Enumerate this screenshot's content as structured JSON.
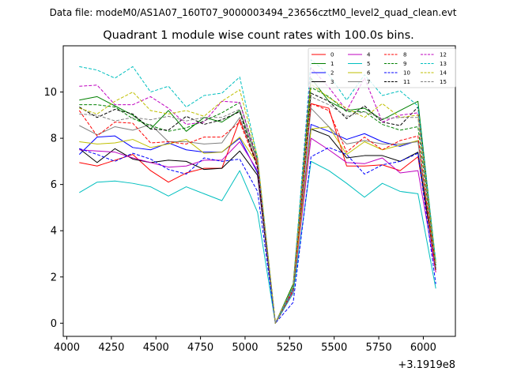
{
  "suptitle": "Data file: modeM0/AS1A07_160T07_9000003494_23656cztM0_level2_quad_clean.evt",
  "chart_data": {
    "type": "line",
    "title": "Quadrant 1 module wise count rates with 100.0s bins.",
    "xlabel": "",
    "ylabel": "",
    "x_offset_label": "+3.1919e8",
    "xlim": [
      3980,
      6180
    ],
    "ylim": [
      -0.57,
      12.0
    ],
    "xticks": [
      4000,
      4250,
      4500,
      4750,
      5000,
      5250,
      5500,
      5750,
      6000
    ],
    "yticks": [
      0,
      2,
      4,
      6,
      8,
      10
    ],
    "grid": false,
    "legend_position": "top-right",
    "legend_columns": 4,
    "x": [
      4070,
      4170,
      4270,
      4370,
      4470,
      4570,
      4670,
      4770,
      4870,
      4970,
      5070,
      5170,
      5270,
      5370,
      5470,
      5570,
      5670,
      5770,
      5870,
      5970,
      6070
    ],
    "series": [
      {
        "name": "0",
        "color": "#ff0000",
        "dash": "solid",
        "values": [
          6.95,
          6.8,
          7.05,
          7.3,
          6.6,
          6.1,
          6.5,
          6.7,
          6.7,
          8.8,
          6.9,
          0.0,
          1.3,
          9.5,
          9.3,
          6.8,
          6.8,
          6.85,
          6.6,
          7.2,
          2.4
        ]
      },
      {
        "name": "1",
        "color": "#008000",
        "dash": "solid",
        "values": [
          9.65,
          9.8,
          9.4,
          9.0,
          8.4,
          9.2,
          8.3,
          8.9,
          8.7,
          9.2,
          7.0,
          0.0,
          1.7,
          10.6,
          9.6,
          9.2,
          9.3,
          8.8,
          9.2,
          9.6,
          2.6
        ]
      },
      {
        "name": "2",
        "color": "#0000ff",
        "dash": "solid",
        "values": [
          7.3,
          8.05,
          8.1,
          7.6,
          7.5,
          7.8,
          7.5,
          7.4,
          7.4,
          8.0,
          6.5,
          0.0,
          1.5,
          8.6,
          8.3,
          7.95,
          8.2,
          7.85,
          7.65,
          7.9,
          2.3
        ]
      },
      {
        "name": "3",
        "color": "#000000",
        "dash": "solid",
        "values": [
          7.55,
          6.95,
          7.55,
          7.1,
          6.95,
          7.05,
          7.0,
          6.65,
          6.7,
          7.45,
          6.4,
          0.0,
          1.5,
          8.4,
          8.1,
          7.15,
          7.25,
          7.25,
          7.0,
          7.4,
          2.3
        ]
      },
      {
        "name": "4",
        "color": "#bf00bf",
        "dash": "solid",
        "values": [
          7.5,
          7.45,
          7.4,
          7.15,
          6.95,
          6.75,
          6.8,
          7.05,
          7.05,
          7.85,
          6.6,
          0.0,
          1.4,
          8.0,
          7.5,
          6.95,
          6.9,
          7.15,
          6.5,
          6.6,
          2.2
        ]
      },
      {
        "name": "5",
        "color": "#00bfbf",
        "dash": "solid",
        "values": [
          5.65,
          6.1,
          6.15,
          6.05,
          5.9,
          5.5,
          5.9,
          5.6,
          5.3,
          6.6,
          4.8,
          0.0,
          1.3,
          7.0,
          6.6,
          6.05,
          5.45,
          6.05,
          5.7,
          5.6,
          1.5
        ]
      },
      {
        "name": "6",
        "color": "#bfbf00",
        "dash": "solid",
        "values": [
          7.85,
          7.75,
          7.8,
          7.95,
          7.6,
          7.75,
          7.95,
          7.35,
          7.4,
          8.05,
          6.9,
          0.0,
          1.5,
          8.4,
          8.5,
          7.3,
          7.85,
          7.5,
          7.7,
          7.9,
          2.4
        ]
      },
      {
        "name": "7",
        "color": "#808080",
        "dash": "solid",
        "values": [
          8.55,
          8.15,
          8.5,
          8.35,
          8.6,
          7.85,
          7.85,
          7.75,
          7.8,
          8.9,
          6.8,
          0.0,
          1.6,
          9.3,
          8.5,
          7.75,
          7.9,
          7.75,
          7.75,
          7.85,
          2.3
        ]
      },
      {
        "name": "8",
        "color": "#ff0000",
        "dash": "dashed",
        "values": [
          9.2,
          8.1,
          8.7,
          8.65,
          7.8,
          7.85,
          7.75,
          8.05,
          8.05,
          8.7,
          6.8,
          0.0,
          1.4,
          9.5,
          9.2,
          7.4,
          8.05,
          7.5,
          7.9,
          8.1,
          2.2
        ]
      },
      {
        "name": "9",
        "color": "#008000",
        "dash": "dashed",
        "values": [
          9.45,
          9.45,
          9.35,
          8.85,
          8.55,
          8.3,
          8.45,
          8.75,
          9.1,
          9.55,
          7.1,
          0.0,
          1.6,
          10.2,
          9.8,
          9.15,
          9.15,
          8.6,
          8.35,
          8.5,
          2.5
        ]
      },
      {
        "name": "10",
        "color": "#0000ff",
        "dash": "dashed",
        "values": [
          7.55,
          7.3,
          7.0,
          7.35,
          7.1,
          6.65,
          6.45,
          7.15,
          7.0,
          7.1,
          5.7,
          0.0,
          0.9,
          7.2,
          7.6,
          7.3,
          6.45,
          6.85,
          7.0,
          7.35,
          1.7
        ]
      },
      {
        "name": "11",
        "color": "#000000",
        "dash": "dashed",
        "values": [
          9.35,
          8.9,
          9.25,
          9.05,
          8.4,
          8.35,
          8.95,
          8.6,
          8.8,
          9.15,
          6.7,
          0.0,
          1.5,
          9.95,
          9.6,
          8.85,
          9.4,
          8.7,
          8.55,
          9.35,
          2.3
        ]
      },
      {
        "name": "12",
        "color": "#bf00bf",
        "dash": "dashed",
        "values": [
          10.25,
          10.3,
          9.45,
          9.45,
          9.8,
          9.3,
          8.6,
          8.7,
          9.6,
          9.55,
          7.0,
          0.0,
          1.5,
          11.05,
          10.2,
          9.2,
          10.6,
          8.7,
          9.0,
          9.1,
          2.6
        ]
      },
      {
        "name": "13",
        "color": "#00bfbf",
        "dash": "dashed",
        "values": [
          11.1,
          10.95,
          10.6,
          11.1,
          10.0,
          10.25,
          9.35,
          9.85,
          9.95,
          10.65,
          7.15,
          0.0,
          1.5,
          11.4,
          10.75,
          9.65,
          10.75,
          9.85,
          10.05,
          9.4,
          2.7
        ]
      },
      {
        "name": "14",
        "color": "#bfbf00",
        "dash": "dashed",
        "values": [
          9.3,
          9.05,
          9.6,
          10.0,
          9.2,
          9.05,
          9.2,
          8.95,
          9.6,
          10.1,
          7.2,
          0.0,
          1.6,
          10.35,
          9.75,
          9.3,
          8.9,
          9.5,
          8.9,
          9.0,
          2.6
        ]
      },
      {
        "name": "15",
        "color": "#808080",
        "dash": "dashed",
        "values": [
          9.05,
          9.0,
          8.75,
          8.9,
          8.8,
          8.95,
          8.75,
          8.9,
          8.9,
          9.25,
          7.0,
          0.0,
          1.6,
          9.8,
          9.45,
          8.95,
          9.15,
          8.85,
          8.9,
          8.9,
          2.4
        ]
      }
    ]
  }
}
